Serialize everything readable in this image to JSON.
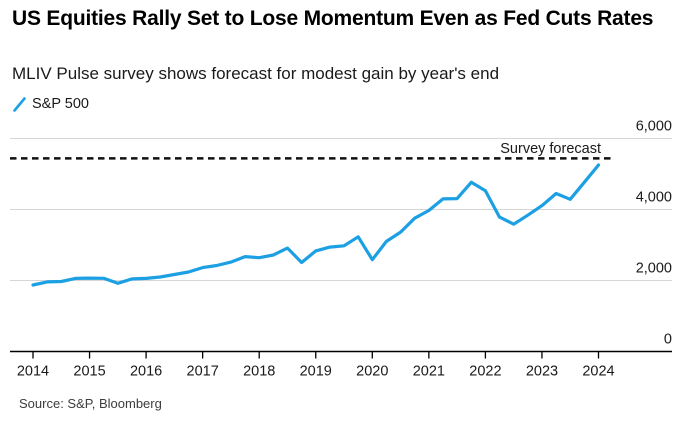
{
  "header": {
    "title": "US Equities Rally Set to Lose Momentum Even as Fed Cuts Rates",
    "subtitle": "MLIV Pulse survey shows forecast for modest gain by year's end"
  },
  "legend": {
    "items": [
      {
        "label": "S&P 500",
        "marker": "slash-icon",
        "color": "#1ca0e3"
      }
    ]
  },
  "source": "Source: S&P, Bloomberg",
  "colors": {
    "line": "#1ca0e3",
    "grid": "#d6d6d6",
    "axis": "#000000",
    "text": "#1a1a1a",
    "forecast": "#111111"
  },
  "chart_data": {
    "type": "line",
    "title": "US Equities Rally Set to Lose Momentum Even as Fed Cuts Rates",
    "xlabel": "",
    "ylabel": "",
    "ylim": [
      0,
      6000
    ],
    "xlim": [
      2013.6,
      2025.3
    ],
    "grid": "horizontal",
    "legend_position": "top-left",
    "x_ticks": {
      "values": [
        2014,
        2015,
        2016,
        2017,
        2018,
        2019,
        2020,
        2021,
        2022,
        2023,
        2024
      ],
      "labels": [
        "2014",
        "2015",
        "2016",
        "2017",
        "2018",
        "2019",
        "2020",
        "2021",
        "2022",
        "2023",
        "2024"
      ]
    },
    "y_ticks": {
      "values": [
        6000,
        4000,
        2000,
        0
      ],
      "labels": [
        "6,000",
        "4,000",
        "2,000",
        "0"
      ]
    },
    "forecast_line": {
      "label": "Survey forecast",
      "value": 5440,
      "style": "dashed"
    },
    "series": [
      {
        "name": "S&P 500",
        "color": "#1ca0e3",
        "x": [
          2014.0,
          2014.25,
          2014.5,
          2014.75,
          2015.0,
          2015.25,
          2015.5,
          2015.75,
          2016.0,
          2016.25,
          2016.5,
          2016.75,
          2017.0,
          2017.25,
          2017.5,
          2017.75,
          2018.0,
          2018.25,
          2018.5,
          2018.75,
          2019.0,
          2019.25,
          2019.5,
          2019.75,
          2020.0,
          2020.25,
          2020.5,
          2020.75,
          2021.0,
          2021.25,
          2021.5,
          2021.75,
          2022.0,
          2022.25,
          2022.5,
          2022.75,
          2023.0,
          2023.25,
          2023.5,
          2023.75,
          2024.0
        ],
        "values": [
          1872,
          1960,
          1972,
          2059,
          2068,
          2063,
          1920,
          2044,
          2060,
          2099,
          2168,
          2239,
          2363,
          2423,
          2519,
          2674,
          2641,
          2718,
          2914,
          2507,
          2834,
          2942,
          2977,
          3231,
          2585,
          3100,
          3363,
          3756,
          3973,
          4298,
          4308,
          4766,
          4530,
          3785,
          3586,
          3840,
          4109,
          4450,
          4288,
          4770,
          5254
        ]
      }
    ]
  }
}
